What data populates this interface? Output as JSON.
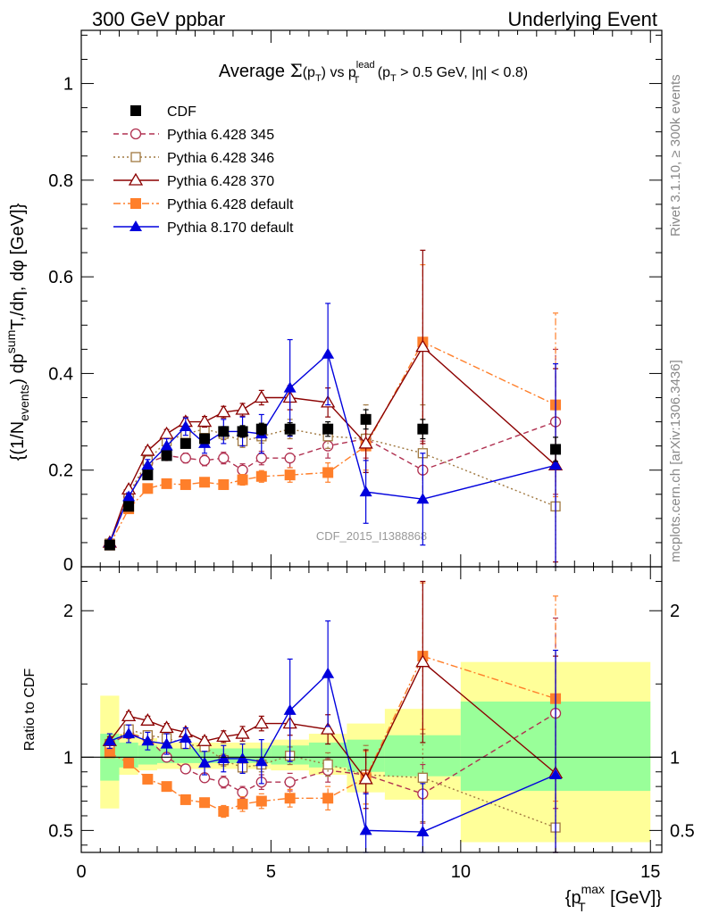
{
  "header": {
    "left": "300 GeV ppbar",
    "right": "Underlying Event"
  },
  "side_labels": {
    "rivet": "Rivet 3.1.10, ≥ 300k events",
    "mcplots": "mcplots.cern.ch [arXiv:1306.3436]"
  },
  "watermark": "CDF_2015_I1388868",
  "colors": {
    "cdf": "#000000",
    "p345": "#b03050",
    "p346": "#a07840",
    "p370": "#8b0000",
    "pdef": "#ff7f2a",
    "p8": "#0000dd",
    "band_inner": "#99ff99",
    "band_outer": "#ffff99"
  },
  "chart_data": [
    {
      "type": "scatter",
      "title": "Average Σ(p_T) vs p_T^lead (p_T > 0.5 GeV, |η| < 0.8)",
      "title_parts": {
        "a": "Average ",
        "sigma": "Σ",
        "b": "(p",
        "b_sub": "T",
        "c": ") vs p",
        "c_sup": "lead",
        "c_sub": "T",
        "d": " (p",
        "d_sub": "T",
        "e": " > 0.5 GeV, |η| < 0.8)"
      },
      "ylabel": "{(1/N_events) dp^sum T,/dη, dφ [GeV]}",
      "ylabel_parts": {
        "a": "{(1/N",
        "a_sub": "events",
        "b": ") dp",
        "b_sup": "sum",
        "c": "T,/dη, dφ [GeV]}"
      },
      "xlim": [
        0,
        15.3
      ],
      "ylim": [
        0,
        1.11
      ],
      "yticks": [
        0.2,
        0.4,
        0.6,
        0.8,
        1
      ],
      "ytick_labels": [
        "0.2",
        "0.4",
        "0.6",
        "0.8",
        "1"
      ],
      "ytick_zero": "0",
      "legend_position": "top-left",
      "x": [
        0.75,
        1.25,
        1.75,
        2.25,
        2.75,
        3.25,
        3.75,
        4.25,
        4.75,
        5.5,
        6.5,
        7.5,
        9.0,
        12.5
      ],
      "series": [
        {
          "name": "CDF",
          "key": "cdf",
          "marker": "square-filled",
          "line": "none",
          "values": [
            0.045,
            0.125,
            0.19,
            0.23,
            0.255,
            0.265,
            0.28,
            0.28,
            0.285,
            0.285,
            0.285,
            0.305,
            0.285,
            0.243
          ],
          "err": [
            0.003,
            0.005,
            0.006,
            0.007,
            0.008,
            0.01,
            0.01,
            0.012,
            0.012,
            0.013,
            0.015,
            0.02,
            0.02,
            0.025
          ]
        },
        {
          "name": "Pythia 6.428 345",
          "key": "p345",
          "marker": "circle-open",
          "line": "dashed",
          "values": [
            0.048,
            0.145,
            0.215,
            0.23,
            0.225,
            0.22,
            0.225,
            0.2,
            0.225,
            0.225,
            0.25,
            0.265,
            0.2,
            0.3
          ],
          "err": [
            0.003,
            0.006,
            0.008,
            0.009,
            0.01,
            0.011,
            0.012,
            0.013,
            0.014,
            0.02,
            0.025,
            0.04,
            0.06,
            0.15
          ]
        },
        {
          "name": "Pythia 6.428 346",
          "key": "p346",
          "marker": "square-open",
          "line": "dotted",
          "values": [
            0.048,
            0.15,
            0.22,
            0.26,
            0.275,
            0.285,
            0.275,
            0.26,
            0.27,
            0.285,
            0.27,
            0.265,
            0.235,
            0.125
          ],
          "err": [
            0.003,
            0.006,
            0.008,
            0.009,
            0.01,
            0.011,
            0.012,
            0.013,
            0.014,
            0.02,
            0.025,
            0.07,
            0.1,
            0.2
          ]
        },
        {
          "name": "Pythia 6.428 370",
          "key": "p370",
          "marker": "triangle-open",
          "line": "solid",
          "values": [
            0.05,
            0.16,
            0.24,
            0.275,
            0.3,
            0.3,
            0.32,
            0.325,
            0.35,
            0.35,
            0.34,
            0.255,
            0.455,
            0.21
          ],
          "err": [
            0.003,
            0.006,
            0.008,
            0.009,
            0.01,
            0.011,
            0.012,
            0.013,
            0.015,
            0.025,
            0.03,
            0.06,
            0.2,
            0.2
          ]
        },
        {
          "name": "Pythia 6.428 default",
          "key": "pdef",
          "marker": "square-filled",
          "line": "dashdot",
          "values": [
            0.045,
            0.12,
            0.162,
            0.172,
            0.17,
            0.175,
            0.17,
            0.18,
            0.187,
            0.19,
            0.195,
            0.25,
            0.465,
            0.335
          ],
          "err": [
            0.003,
            0.005,
            0.006,
            0.007,
            0.008,
            0.009,
            0.01,
            0.011,
            0.012,
            0.015,
            0.02,
            0.05,
            0.16,
            0.19
          ]
        },
        {
          "name": "Pythia 8.170 default",
          "key": "p8",
          "marker": "triangle-filled",
          "line": "solid",
          "values": [
            0.05,
            0.145,
            0.21,
            0.25,
            0.29,
            0.255,
            0.28,
            0.28,
            0.275,
            0.37,
            0.44,
            0.155,
            0.14,
            0.21
          ],
          "err": [
            0.004,
            0.008,
            0.012,
            0.015,
            0.018,
            0.02,
            0.025,
            0.03,
            0.04,
            0.1,
            0.105,
            0.065,
            0.095,
            0.21
          ]
        }
      ]
    },
    {
      "type": "scatter",
      "ylabel": "Ratio to CDF",
      "xlabel": "{p_T^max [GeV]}",
      "xlabel_parts": {
        "a": "{p",
        "a_sup": "max",
        "a_sub": "T",
        "b": " [GeV]}"
      },
      "xlim": [
        0,
        15.3
      ],
      "ylim": [
        0.35,
        2.3
      ],
      "yticks": [
        0.5,
        1,
        2
      ],
      "ytick_labels": [
        "0.5",
        "1",
        "2"
      ],
      "xticks": [
        0,
        5,
        10,
        15
      ],
      "xtick_labels": [
        "0",
        "5",
        "10",
        "15"
      ],
      "reference_line": 1,
      "bands": [
        {
          "x0": 0.5,
          "x1": 1.0,
          "inner": [
            0.84,
            1.16
          ],
          "outer": [
            0.65,
            1.42
          ]
        },
        {
          "x0": 1.0,
          "x1": 1.5,
          "inner": [
            0.93,
            1.1
          ],
          "outer": [
            0.88,
            1.16
          ]
        },
        {
          "x0": 1.5,
          "x1": 2.0,
          "inner": [
            0.95,
            1.08
          ],
          "outer": [
            0.91,
            1.13
          ]
        },
        {
          "x0": 2.0,
          "x1": 5.0,
          "inner": [
            0.96,
            1.06
          ],
          "outer": [
            0.92,
            1.1
          ]
        },
        {
          "x0": 5.0,
          "x1": 6.0,
          "inner": [
            0.95,
            1.08
          ],
          "outer": [
            0.91,
            1.12
          ]
        },
        {
          "x0": 6.0,
          "x1": 7.0,
          "inner": [
            0.93,
            1.1
          ],
          "outer": [
            0.88,
            1.16
          ]
        },
        {
          "x0": 7.0,
          "x1": 8.0,
          "inner": [
            0.9,
            1.12
          ],
          "outer": [
            0.76,
            1.23
          ]
        },
        {
          "x0": 8.0,
          "x1": 10.0,
          "inner": [
            0.87,
            1.15
          ],
          "outer": [
            0.71,
            1.33
          ]
        },
        {
          "x0": 10.0,
          "x1": 15.0,
          "inner": [
            0.77,
            1.38
          ],
          "outer": [
            0.42,
            1.65
          ]
        }
      ],
      "series": [
        {
          "name": "CDF",
          "key": "cdf",
          "marker": "none",
          "line": "none",
          "values": [],
          "err": []
        },
        {
          "name": "Pythia 6.428 345",
          "key": "p345",
          "marker": "circle-open",
          "line": "dashed",
          "values": [
            1.09,
            1.16,
            1.13,
            1.0,
            0.92,
            0.86,
            0.83,
            0.76,
            0.83,
            0.83,
            0.91,
            0.88,
            0.75,
            1.3
          ],
          "err": [
            0.03,
            0.03,
            0.03,
            0.03,
            0.03,
            0.03,
            0.04,
            0.04,
            0.05,
            0.06,
            0.08,
            0.12,
            0.2,
            0.65
          ]
        },
        {
          "name": "Pythia 6.428 346",
          "key": "p346",
          "marker": "square-open",
          "line": "dotted",
          "values": [
            1.09,
            1.19,
            1.15,
            1.13,
            1.09,
            1.07,
            0.98,
            0.93,
            0.95,
            1.01,
            0.95,
            0.88,
            0.86,
            0.52
          ],
          "err": [
            0.03,
            0.03,
            0.03,
            0.03,
            0.03,
            0.03,
            0.04,
            0.04,
            0.05,
            0.06,
            0.08,
            0.2,
            0.3,
            0.75
          ]
        },
        {
          "name": "Pythia 6.428 370",
          "key": "p370",
          "marker": "triangle-open",
          "line": "solid",
          "values": [
            1.11,
            1.28,
            1.25,
            1.2,
            1.17,
            1.11,
            1.14,
            1.16,
            1.23,
            1.23,
            1.19,
            0.85,
            1.65,
            0.89
          ],
          "err": [
            0.03,
            0.03,
            0.03,
            0.03,
            0.03,
            0.03,
            0.04,
            0.05,
            0.05,
            0.08,
            0.1,
            0.2,
            0.55,
            0.8
          ]
        },
        {
          "name": "Pythia 6.428 default",
          "key": "pdef",
          "marker": "square-filled",
          "line": "dashdot",
          "values": [
            1.03,
            0.96,
            0.85,
            0.8,
            0.71,
            0.69,
            0.63,
            0.68,
            0.7,
            0.72,
            0.72,
            0.86,
            1.69,
            1.4
          ],
          "err": [
            0.03,
            0.03,
            0.03,
            0.03,
            0.03,
            0.03,
            0.04,
            0.05,
            0.05,
            0.06,
            0.08,
            0.18,
            0.5,
            0.7
          ]
        },
        {
          "name": "Pythia 8.170 default",
          "key": "p8",
          "marker": "triangle-filled",
          "line": "solid",
          "values": [
            1.11,
            1.16,
            1.11,
            1.09,
            1.13,
            0.96,
            0.99,
            0.99,
            0.97,
            1.32,
            1.57,
            0.5,
            0.49,
            0.88
          ],
          "err": [
            0.05,
            0.06,
            0.06,
            0.07,
            0.07,
            0.08,
            0.09,
            0.1,
            0.15,
            0.35,
            0.36,
            0.25,
            0.33,
            0.85
          ]
        }
      ]
    }
  ]
}
